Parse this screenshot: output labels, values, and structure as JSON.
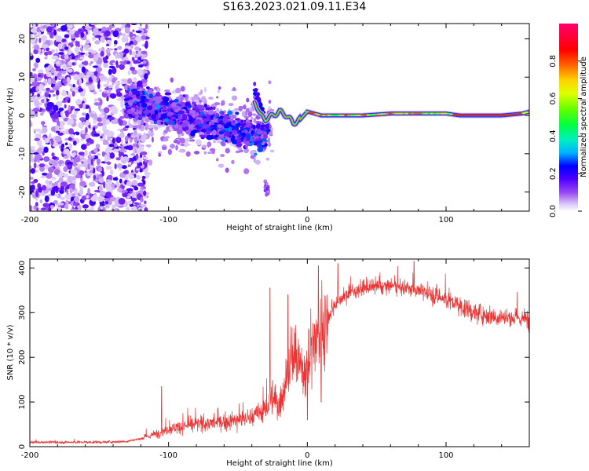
{
  "title": "S163.2023.021.09.11.E34",
  "chart_data": [
    {
      "type": "heatmap",
      "title": "S163.2023.021.09.11.E34",
      "xlabel": "Height of straight line (km)",
      "ylabel": "Frequency (Hz)",
      "xlim": [
        -200,
        160
      ],
      "ylim": [
        -25,
        24
      ],
      "xticks": [
        -200,
        -100,
        0,
        100
      ],
      "xtick_labels": [
        "-200",
        "-100",
        "0",
        "100"
      ],
      "yticks": [
        -20,
        -10,
        0,
        10,
        20
      ],
      "ytick_labels": [
        "-20",
        "-10",
        "0",
        "10",
        "20"
      ],
      "colorbar": {
        "label": "Normalized spectral amplitude",
        "range": [
          0,
          1
        ],
        "ticks": [
          0.0,
          0.2,
          0.4,
          0.6,
          0.8
        ],
        "tick_labels": [
          "0.0",
          "0.2",
          "0.4",
          "0.6",
          "0.8"
        ],
        "colormap": [
          "#ffffff",
          "#dcc6f5",
          "#9a4cf0",
          "#5a00ff",
          "#0000ff",
          "#00c8ff",
          "#00ff80",
          "#00ff00",
          "#c8ff00",
          "#ffff00",
          "#ff8000",
          "#ff0000",
          "#ff0080"
        ]
      },
      "ridge": {
        "description_x": [
          -40,
          -37,
          -34,
          -30,
          -25,
          -20,
          -15,
          -10,
          -5,
          0,
          10,
          20,
          40,
          60,
          80,
          100,
          110,
          120,
          140,
          155,
          160
        ],
        "freq": [
          5,
          3,
          0,
          -1,
          0,
          1,
          0,
          -2,
          -1,
          1,
          0,
          0,
          0,
          0.5,
          0.5,
          0.5,
          0,
          0,
          0,
          0.5,
          1
        ]
      },
      "grid": false
    },
    {
      "type": "line",
      "xlabel": "Height of straight line (km)",
      "ylabel": "SNR (10 * v/v)",
      "xlim": [
        -200,
        160
      ],
      "ylim": [
        0,
        420
      ],
      "xticks": [
        -200,
        -100,
        0,
        100
      ],
      "xtick_labels": [
        "-200",
        "-100",
        "0",
        "100"
      ],
      "yticks": [
        0,
        100,
        200,
        300,
        400
      ],
      "ytick_labels": [
        "0",
        "100",
        "200",
        "300",
        "400"
      ],
      "color": "#ee3333",
      "trend_x": [
        -200,
        -150,
        -130,
        -120,
        -110,
        -100,
        -80,
        -60,
        -40,
        -30,
        -25,
        -20,
        -15,
        -10,
        -5,
        0,
        5,
        10,
        15,
        20,
        30,
        40,
        60,
        80,
        100,
        120,
        140,
        160
      ],
      "trend_y": [
        10,
        10,
        12,
        18,
        28,
        40,
        50,
        55,
        65,
        85,
        110,
        90,
        160,
        200,
        180,
        170,
        240,
        250,
        290,
        320,
        345,
        355,
        360,
        350,
        330,
        300,
        290,
        285
      ],
      "spikes": [
        {
          "x": -105,
          "y": 135
        },
        {
          "x": -27,
          "y": 355
        },
        {
          "x": -14,
          "y": 340
        },
        {
          "x": 8,
          "y": 405
        },
        {
          "x": 22,
          "y": 410
        },
        {
          "x": 77,
          "y": 415
        },
        {
          "x": 0,
          "y": 60
        },
        {
          "x": 10,
          "y": 100
        }
      ],
      "grid": false
    }
  ]
}
